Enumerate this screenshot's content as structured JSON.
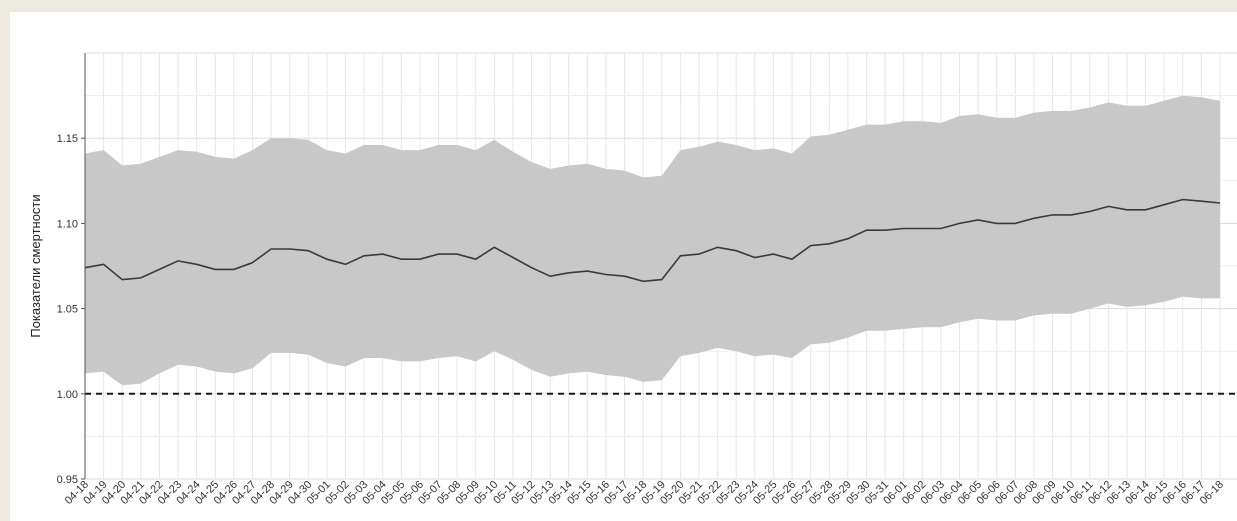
{
  "chart_data": {
    "type": "line",
    "title": "",
    "xlabel": "",
    "ylabel": "Показатели смертности",
    "ylim": [
      0.95,
      1.2
    ],
    "yticks": [
      "0.95",
      "1.00",
      "1.05",
      "1.10",
      "1.15"
    ],
    "ytick_values": [
      0.95,
      1.0,
      1.05,
      1.1,
      1.15
    ],
    "grid": true,
    "legend": "none",
    "reference_line": {
      "y": 1.0,
      "style": "dashed"
    },
    "categories": [
      "04-18",
      "04-19",
      "04-20",
      "04-21",
      "04-22",
      "04-23",
      "04-24",
      "04-25",
      "04-26",
      "04-27",
      "04-28",
      "04-29",
      "04-30",
      "05-01",
      "05-02",
      "05-03",
      "05-04",
      "05-05",
      "05-06",
      "05-07",
      "05-08",
      "05-09",
      "05-10",
      "05-11",
      "05-12",
      "05-13",
      "05-14",
      "05-15",
      "05-16",
      "05-17",
      "05-18",
      "05-19",
      "05-20",
      "05-21",
      "05-22",
      "05-23",
      "05-24",
      "05-25",
      "05-26",
      "05-27",
      "05-28",
      "05-29",
      "05-30",
      "05-31",
      "06-01",
      "06-02",
      "06-03",
      "06-04",
      "06-05",
      "06-06",
      "06-07",
      "06-08",
      "06-09",
      "06-10",
      "06-11",
      "06-12",
      "06-13",
      "06-14",
      "06-15",
      "06-16",
      "06-17",
      "06-18"
    ],
    "series": [
      {
        "role": "estimate",
        "values": [
          1.074,
          1.076,
          1.067,
          1.068,
          1.073,
          1.078,
          1.076,
          1.073,
          1.073,
          1.077,
          1.085,
          1.085,
          1.084,
          1.079,
          1.076,
          1.081,
          1.082,
          1.079,
          1.079,
          1.082,
          1.082,
          1.079,
          1.086,
          1.08,
          1.074,
          1.069,
          1.071,
          1.072,
          1.07,
          1.069,
          1.066,
          1.067,
          1.081,
          1.082,
          1.086,
          1.084,
          1.08,
          1.082,
          1.079,
          1.087,
          1.088,
          1.091,
          1.096,
          1.096,
          1.097,
          1.097,
          1.097,
          1.1,
          1.102,
          1.1,
          1.1,
          1.103,
          1.105,
          1.105,
          1.107,
          1.11,
          1.108,
          1.108,
          1.111,
          1.114,
          1.113,
          1.112
        ]
      },
      {
        "role": "upper",
        "values": [
          1.141,
          1.143,
          1.134,
          1.135,
          1.139,
          1.143,
          1.142,
          1.139,
          1.138,
          1.143,
          1.15,
          1.15,
          1.149,
          1.143,
          1.141,
          1.146,
          1.146,
          1.143,
          1.143,
          1.146,
          1.146,
          1.143,
          1.149,
          1.142,
          1.136,
          1.132,
          1.134,
          1.135,
          1.132,
          1.131,
          1.127,
          1.128,
          1.143,
          1.145,
          1.148,
          1.146,
          1.143,
          1.144,
          1.141,
          1.151,
          1.152,
          1.155,
          1.158,
          1.158,
          1.16,
          1.16,
          1.159,
          1.163,
          1.164,
          1.162,
          1.162,
          1.165,
          1.166,
          1.166,
          1.168,
          1.171,
          1.169,
          1.169,
          1.172,
          1.175,
          1.174,
          1.172
        ]
      },
      {
        "role": "lower",
        "values": [
          1.012,
          1.013,
          1.005,
          1.006,
          1.012,
          1.017,
          1.016,
          1.013,
          1.012,
          1.015,
          1.024,
          1.024,
          1.023,
          1.018,
          1.016,
          1.021,
          1.021,
          1.019,
          1.019,
          1.021,
          1.022,
          1.019,
          1.025,
          1.02,
          1.014,
          1.01,
          1.012,
          1.013,
          1.011,
          1.01,
          1.007,
          1.008,
          1.022,
          1.024,
          1.027,
          1.025,
          1.022,
          1.023,
          1.021,
          1.029,
          1.03,
          1.033,
          1.037,
          1.037,
          1.038,
          1.039,
          1.039,
          1.042,
          1.044,
          1.043,
          1.043,
          1.046,
          1.047,
          1.047,
          1.05,
          1.053,
          1.051,
          1.052,
          1.054,
          1.057,
          1.056,
          1.056
        ]
      }
    ],
    "colors": {
      "band": "#c8c8c8",
      "line": "#3a3a3a",
      "grid": "#e6e6e6",
      "reference": "#1a1a1a"
    }
  }
}
